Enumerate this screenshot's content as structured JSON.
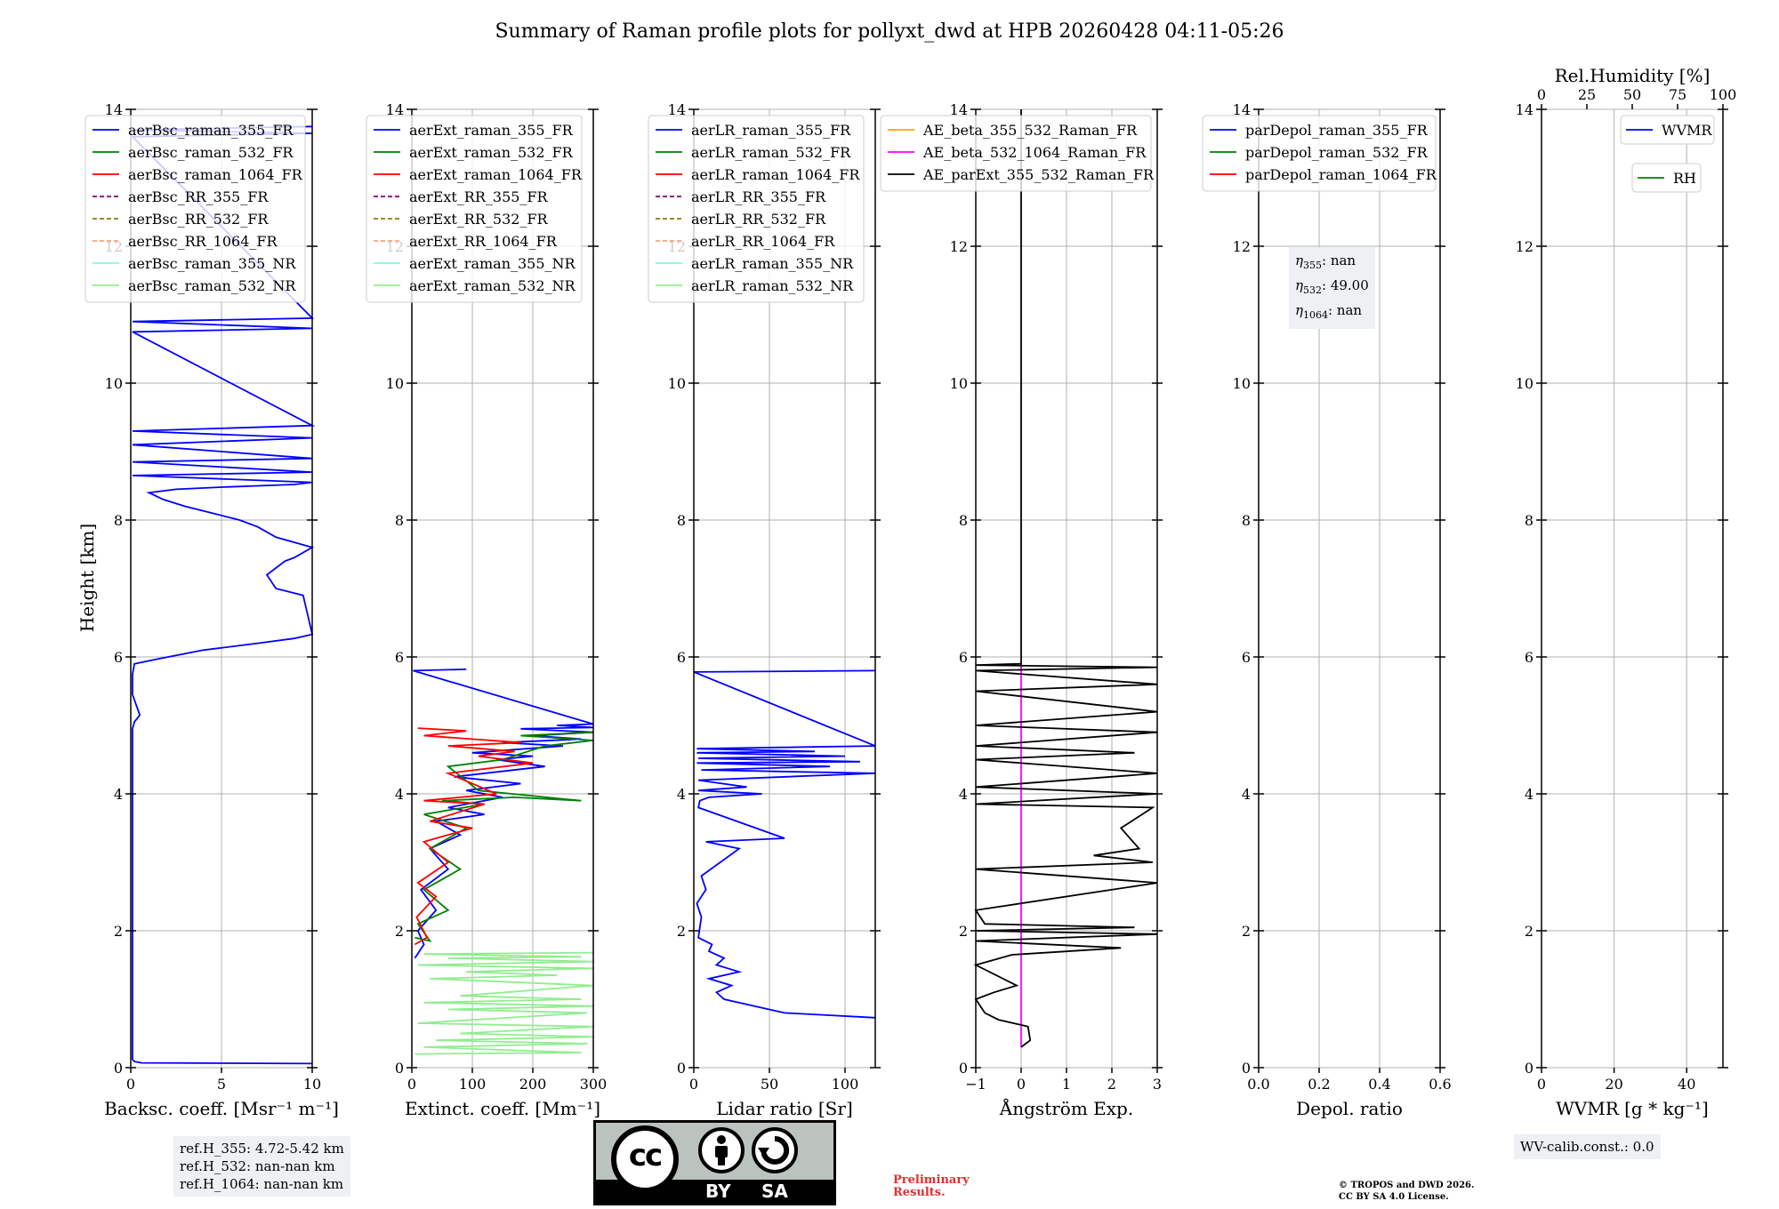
{
  "title": "Summary of Raman profile plots for pollyxt_dwd at HPB 20260428 04:11-05:26",
  "y_axis_label": "Height [km]",
  "y_ticks": [
    "0",
    "2",
    "4",
    "6",
    "8",
    "10",
    "12",
    "14"
  ],
  "colors": {
    "blue": "#0000ff",
    "green": "#008000",
    "red": "#ff0000",
    "purple": "#800080",
    "olive": "#808000",
    "salmon": "#ffa07a",
    "cyan": "#7fffd4",
    "lightgreen": "#90ee90",
    "orange": "#ffa500",
    "magenta": "#ff00ff",
    "black": "#000000"
  },
  "chart_data": [
    {
      "type": "line",
      "xlabel": "Backsc. coeff. [Msr⁻¹ m⁻¹]",
      "xlim": [
        0,
        10
      ],
      "ylim": [
        0,
        14
      ],
      "xticks": [
        0,
        5,
        10
      ],
      "xtick_labels": [
        "0",
        "5",
        "10"
      ],
      "legend_location": "upper-left",
      "legend": [
        {
          "label": "aerBsc_raman_355_FR",
          "color": "#0000ff",
          "style": "solid"
        },
        {
          "label": "aerBsc_raman_532_FR",
          "color": "#008000",
          "style": "solid"
        },
        {
          "label": "aerBsc_raman_1064_FR",
          "color": "#ff0000",
          "style": "solid"
        },
        {
          "label": "aerBsc_RR_355_FR",
          "color": "#800080",
          "style": "dashed"
        },
        {
          "label": "aerBsc_RR_532_FR",
          "color": "#808000",
          "style": "dashed"
        },
        {
          "label": "aerBsc_RR_1064_FR",
          "color": "#ffa07a",
          "style": "dashed"
        },
        {
          "label": "aerBsc_raman_355_NR",
          "color": "#7fffd4",
          "style": "solid"
        },
        {
          "label": "aerBsc_raman_532_NR",
          "color": "#90ee90",
          "style": "solid"
        }
      ],
      "series": [
        {
          "name": "aerBsc_raman_355_FR",
          "color": "#0000ff",
          "x": [
            10,
            0.6,
            0.2,
            0.1,
            0.1,
            0.2,
            0.5,
            0.3,
            0.1,
            0.1,
            0.2,
            1.5,
            4,
            7,
            9,
            10,
            9.5,
            8,
            7.5,
            8.5,
            9,
            10,
            8,
            7,
            6,
            4.5,
            3,
            1.8,
            1,
            2.5,
            5,
            7,
            9,
            10,
            0.1,
            10,
            0.1,
            10,
            0.1,
            10,
            0.1,
            10,
            0.1,
            10,
            0.1,
            10,
            0.1,
            10,
            0.1,
            10
          ],
          "y": [
            0.06,
            0.07,
            0.09,
            0.12,
            4.95,
            5.05,
            5.15,
            5.3,
            5.45,
            5.75,
            5.9,
            5.97,
            6.1,
            6.2,
            6.27,
            6.33,
            6.9,
            7.0,
            7.2,
            7.4,
            7.45,
            7.6,
            7.75,
            7.9,
            8.0,
            8.1,
            8.2,
            8.3,
            8.4,
            8.45,
            8.48,
            8.5,
            8.52,
            8.55,
            8.65,
            8.7,
            8.85,
            8.9,
            9.1,
            9.2,
            9.3,
            9.38,
            10.75,
            10.8,
            10.9,
            10.95,
            13.6,
            13.65,
            13.7,
            13.75
          ]
        }
      ],
      "annotation": [
        "ref.H_355: 4.72-5.42 km",
        "ref.H_532: nan-nan km",
        "ref.H_1064: nan-nan km"
      ]
    },
    {
      "type": "line",
      "xlabel": "Extinct. coeff. [Mm⁻¹]",
      "xlim": [
        0,
        300
      ],
      "ylim": [
        0,
        14
      ],
      "xticks": [
        0,
        100,
        200,
        300
      ],
      "xtick_labels": [
        "0",
        "100",
        "200",
        "300"
      ],
      "legend_location": "upper-left",
      "legend": [
        {
          "label": "aerExt_raman_355_FR",
          "color": "#0000ff",
          "style": "solid"
        },
        {
          "label": "aerExt_raman_532_FR",
          "color": "#008000",
          "style": "solid"
        },
        {
          "label": "aerExt_raman_1064_FR",
          "color": "#ff0000",
          "style": "solid"
        },
        {
          "label": "aerExt_RR_355_FR",
          "color": "#800080",
          "style": "dashed"
        },
        {
          "label": "aerExt_RR_532_FR",
          "color": "#808000",
          "style": "dashed"
        },
        {
          "label": "aerExt_RR_1064_FR",
          "color": "#ffa07a",
          "style": "dashed"
        },
        {
          "label": "aerExt_raman_355_NR",
          "color": "#7fffd4",
          "style": "solid"
        },
        {
          "label": "aerExt_raman_532_NR",
          "color": "#90ee90",
          "style": "solid"
        }
      ],
      "series": [
        {
          "name": "aerExt_raman_355_FR",
          "color": "#0000ff",
          "x": [
            5,
            20,
            10,
            40,
            15,
            60,
            30,
            80,
            40,
            120,
            60,
            150,
            90,
            180,
            70,
            220,
            140,
            200,
            100,
            250,
            150,
            280,
            200,
            300,
            180,
            300,
            240,
            300,
            2,
            90
          ],
          "y": [
            1.6,
            1.8,
            2.0,
            2.3,
            2.6,
            2.9,
            3.2,
            3.4,
            3.6,
            3.7,
            3.8,
            3.95,
            4.05,
            4.15,
            4.25,
            4.4,
            4.5,
            4.55,
            4.6,
            4.7,
            4.75,
            4.8,
            4.85,
            4.9,
            4.95,
            4.97,
            5.0,
            5.02,
            5.8,
            5.82
          ]
        },
        {
          "name": "aerExt_raman_532_FR",
          "color": "#008000",
          "x": [
            5,
            30,
            10,
            60,
            20,
            80,
            30,
            90,
            20,
            120,
            50,
            170,
            280,
            110,
            60,
            150,
            220,
            300,
            180,
            300
          ],
          "y": [
            1.9,
            1.85,
            2.1,
            2.3,
            2.6,
            2.9,
            3.2,
            3.5,
            3.7,
            3.85,
            3.9,
            3.95,
            3.9,
            4.05,
            4.4,
            4.5,
            4.7,
            4.78,
            4.85,
            4.9
          ]
        },
        {
          "name": "aerExt_raman_1064_FR",
          "color": "#ff0000",
          "x": [
            5,
            25,
            8,
            40,
            10,
            60,
            20,
            100,
            30,
            120,
            20,
            140,
            60,
            200,
            110,
            170,
            60,
            180,
            20,
            90,
            10
          ],
          "y": [
            1.8,
            1.9,
            2.2,
            2.5,
            2.7,
            3.0,
            3.3,
            3.5,
            3.6,
            3.85,
            3.9,
            4.0,
            4.3,
            4.45,
            4.55,
            4.62,
            4.7,
            4.75,
            4.85,
            4.92,
            4.96
          ]
        },
        {
          "name": "aerExt_raman_532_NR",
          "color": "#90ee90",
          "x": [
            5,
            280,
            20,
            290,
            40,
            300,
            80,
            300,
            10,
            290,
            60,
            300,
            20,
            280,
            80,
            300,
            30,
            240,
            90,
            300,
            10,
            300,
            60,
            280,
            20,
            300
          ],
          "y": [
            0.2,
            0.22,
            0.3,
            0.35,
            0.4,
            0.45,
            0.5,
            0.6,
            0.65,
            0.8,
            0.85,
            0.9,
            0.95,
            1.0,
            1.05,
            1.2,
            1.3,
            1.35,
            1.4,
            1.45,
            1.5,
            1.55,
            1.6,
            1.62,
            1.66,
            1.68
          ]
        }
      ]
    },
    {
      "type": "line",
      "xlabel": "Lidar ratio [Sr]",
      "xlim": [
        0,
        120
      ],
      "ylim": [
        0,
        14
      ],
      "xticks": [
        0,
        50,
        100
      ],
      "xtick_labels": [
        "0",
        "50",
        "100"
      ],
      "legend_location": "upper-left",
      "legend": [
        {
          "label": "aerLR_raman_355_FR",
          "color": "#0000ff",
          "style": "solid"
        },
        {
          "label": "aerLR_raman_532_FR",
          "color": "#008000",
          "style": "solid"
        },
        {
          "label": "aerLR_raman_1064_FR",
          "color": "#ff0000",
          "style": "solid"
        },
        {
          "label": "aerLR_RR_355_FR",
          "color": "#800080",
          "style": "dashed"
        },
        {
          "label": "aerLR_RR_532_FR",
          "color": "#808000",
          "style": "dashed"
        },
        {
          "label": "aerLR_RR_1064_FR",
          "color": "#ffa07a",
          "style": "dashed"
        },
        {
          "label": "aerLR_raman_355_NR",
          "color": "#7fffd4",
          "style": "solid"
        },
        {
          "label": "aerLR_raman_532_NR",
          "color": "#90ee90",
          "style": "solid"
        }
      ],
      "series": [
        {
          "name": "aerLR_raman_355_FR",
          "color": "#0000ff",
          "x": [
            120,
            60,
            40,
            20,
            15,
            25,
            10,
            30,
            15,
            20,
            10,
            12,
            3,
            5,
            2,
            8,
            5,
            30,
            8,
            60,
            3,
            4,
            10,
            45,
            3,
            35,
            3,
            120,
            5,
            90,
            2,
            110,
            3,
            100,
            2,
            80,
            2,
            120,
            0,
            120
          ],
          "y": [
            0.73,
            0.8,
            0.9,
            1.0,
            1.1,
            1.2,
            1.3,
            1.4,
            1.5,
            1.6,
            1.7,
            1.8,
            1.9,
            2.2,
            2.4,
            2.6,
            2.8,
            3.2,
            3.3,
            3.35,
            3.8,
            3.9,
            3.95,
            4.0,
            4.05,
            4.1,
            4.2,
            4.3,
            4.35,
            4.4,
            4.45,
            4.47,
            4.52,
            4.55,
            4.6,
            4.62,
            4.66,
            4.7,
            5.78,
            5.8
          ]
        }
      ]
    },
    {
      "type": "line",
      "xlabel": "Ångström Exp.",
      "xlim": [
        -1,
        3
      ],
      "ylim": [
        0,
        14
      ],
      "xticks": [
        -1,
        0,
        1,
        2,
        3
      ],
      "xtick_labels": [
        "−1",
        "0",
        "1",
        "2",
        "3"
      ],
      "legend_location": "upper-left",
      "legend": [
        {
          "label": "AE_beta_355_532_Raman_FR",
          "color": "#ffa500",
          "style": "solid"
        },
        {
          "label": "AE_beta_532_1064_Raman_FR",
          "color": "#ff00ff",
          "style": "solid"
        },
        {
          "label": "AE_parExt_355_532_Raman_FR",
          "color": "#000000",
          "style": "solid"
        }
      ],
      "series": [
        {
          "name": "AE_beta_532_1064_Raman_FR",
          "color": "#ff00ff",
          "x": [
            0,
            0
          ],
          "y": [
            0.3,
            5.9
          ]
        },
        {
          "name": "AE_parExt_355_532_Raman_FR",
          "color": "#000000",
          "x": [
            0,
            0.2,
            0.15,
            -0.5,
            -0.8,
            -1,
            -0.6,
            -0.1,
            -1,
            -0.2,
            2.2,
            -1,
            3,
            -1,
            2.5,
            -0.8,
            -1,
            3,
            -1,
            2.9,
            1.6,
            2.6,
            2.2,
            2.9,
            -1,
            3,
            -1,
            3,
            -1,
            2.5,
            -1,
            3,
            -1,
            3,
            -1,
            3,
            -1,
            3,
            -1,
            0,
            0,
            0
          ],
          "y": [
            0.3,
            0.4,
            0.6,
            0.7,
            0.8,
            1.0,
            1.1,
            1.2,
            1.5,
            1.65,
            1.75,
            1.85,
            1.95,
            2.0,
            2.05,
            2.1,
            2.3,
            2.7,
            2.9,
            3.0,
            3.1,
            3.2,
            3.5,
            3.8,
            3.85,
            4.0,
            4.1,
            4.3,
            4.5,
            4.6,
            4.7,
            4.9,
            5.0,
            5.2,
            5.5,
            5.6,
            5.8,
            5.85,
            5.88,
            5.9,
            5.92,
            14
          ]
        }
      ]
    },
    {
      "type": "line",
      "xlabel": "Depol. ratio",
      "xlim": [
        0,
        0.6
      ],
      "ylim": [
        0,
        14
      ],
      "xticks": [
        0,
        0.2,
        0.4,
        0.6
      ],
      "xtick_labels": [
        "0.0",
        "0.2",
        "0.4",
        "0.6"
      ],
      "legend_location": "upper-left",
      "legend": [
        {
          "label": "parDepol_raman_355_FR",
          "color": "#0000ff",
          "style": "solid"
        },
        {
          "label": "parDepol_raman_532_FR",
          "color": "#008000",
          "style": "solid"
        },
        {
          "label": "parDepol_raman_1064_FR",
          "color": "#ff0000",
          "style": "solid"
        }
      ],
      "series": [],
      "annotation_eta": [
        {
          "sub": "355",
          "value": ": nan"
        },
        {
          "sub": "532",
          "value": ": 49.00"
        },
        {
          "sub": "1064",
          "value": ": nan"
        }
      ]
    },
    {
      "type": "line",
      "xlabel": "WVMR [g * kg⁻¹]",
      "xlim": [
        0,
        50
      ],
      "ylim": [
        0,
        14
      ],
      "xticks": [
        0,
        20,
        40
      ],
      "xtick_labels": [
        "0",
        "20",
        "40"
      ],
      "top_xlabel": "Rel.Humidity [%]",
      "top_xlim": [
        0,
        100
      ],
      "top_xticks": [
        0,
        25,
        50,
        75,
        100
      ],
      "top_xtick_labels": [
        "0",
        "25",
        "50",
        "75",
        "100"
      ],
      "legend": [
        {
          "label": "WVMR",
          "color": "#0000ff",
          "style": "solid"
        },
        {
          "label": "RH",
          "color": "#008000",
          "style": "solid"
        }
      ],
      "series": [],
      "annotation": [
        "WV-calib.const.: 0.0"
      ]
    }
  ],
  "footer": {
    "cc_left": "BY",
    "cc_right": "SA",
    "preliminary": [
      "Preliminary",
      "Results."
    ],
    "copyright": [
      "© TROPOS and DWD 2026.",
      "CC BY SA 4.0 License."
    ]
  }
}
